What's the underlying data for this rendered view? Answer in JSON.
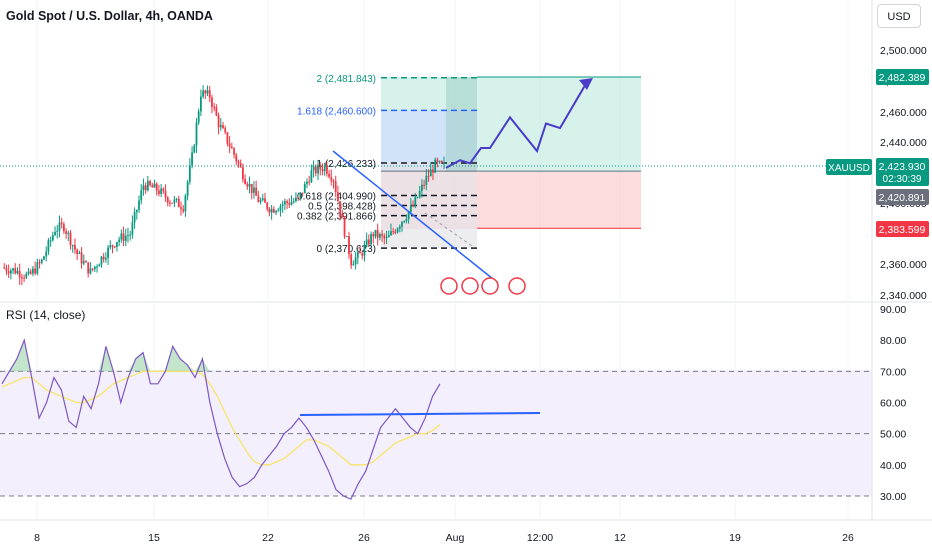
{
  "header": {
    "title": "Gold Spot / U.S. Dollar, 4h, OANDA",
    "currency": "USD"
  },
  "rsi_panel": {
    "title": "RSI (14, close)"
  },
  "colors": {
    "up": "#089981",
    "down": "#f23645",
    "rsi_line": "#7e57c2",
    "rsi_ma": "#f7e56a",
    "trendline": "#2962ff",
    "projection": "#4a3cc8",
    "target_zone": "#c8ede3",
    "stop_zone": "#fbd3d3",
    "fib_zone": "#cfe0fb"
  },
  "price_axis": {
    "ticks": [
      "2,500.000",
      "2,480.000",
      "2,460.000",
      "2,440.000",
      "2,400.000",
      "2,360.000",
      "2,340.000"
    ],
    "labels": {
      "symbol": "XAUUSD",
      "current_price": "2,423.930",
      "countdown": "02:30:39",
      "target_price": "2,482.389",
      "entry_price": "2,420.891",
      "stop_price": "2,383.599"
    }
  },
  "rsi_axis": {
    "ticks": [
      "90.00",
      "80.00",
      "70.00",
      "60.00",
      "50.00",
      "40.00",
      "30.00"
    ]
  },
  "time_axis": {
    "ticks": [
      "8",
      "15",
      "22",
      "26",
      "Aug",
      "12:00",
      "12",
      "19",
      "26"
    ]
  },
  "fib_labels": [
    "2 (2,481.843)",
    "1.618 (2,460.600)",
    "1 (2,426.233)",
    "0.618 (2,404.990)",
    "0.5 (2,398.428)",
    "0.382 (2,391.866)",
    "0 (2,370.623)"
  ],
  "chart_data": [
    {
      "type": "candlestick",
      "title": "Gold Spot / U.S. Dollar, 4h, OANDA",
      "ylim": [
        2340,
        2510
      ],
      "x_ticks": [
        "8",
        "15",
        "22",
        "26",
        "Aug",
        "12:00",
        "12",
        "19",
        "26"
      ],
      "close_path": [
        [
          0,
          2358
        ],
        [
          6,
          2356
        ],
        [
          12,
          2352
        ],
        [
          18,
          2362
        ],
        [
          24,
          2383
        ],
        [
          28,
          2385
        ],
        [
          34,
          2367
        ],
        [
          40,
          2355
        ],
        [
          46,
          2366
        ],
        [
          52,
          2376
        ],
        [
          58,
          2380
        ],
        [
          64,
          2412
        ],
        [
          70,
          2409
        ],
        [
          76,
          2402
        ],
        [
          82,
          2398
        ],
        [
          86,
          2430
        ],
        [
          90,
          2472
        ],
        [
          94,
          2470
        ],
        [
          98,
          2452
        ],
        [
          104,
          2435
        ],
        [
          110,
          2416
        ],
        [
          116,
          2402
        ],
        [
          122,
          2396
        ],
        [
          128,
          2400
        ],
        [
          134,
          2402
        ],
        [
          140,
          2420
        ],
        [
          146,
          2424
        ],
        [
          150,
          2416
        ],
        [
          154,
          2388
        ],
        [
          158,
          2362
        ],
        [
          162,
          2366
        ],
        [
          168,
          2380
        ],
        [
          174,
          2376
        ],
        [
          180,
          2387
        ],
        [
          186,
          2398
        ],
        [
          192,
          2416
        ],
        [
          196,
          2425
        ],
        [
          200,
          2423.93
        ]
      ],
      "last_price": 2423.93,
      "fibonacci": [
        {
          "level": "2",
          "price": 2481.843
        },
        {
          "level": "1.618",
          "price": 2460.6
        },
        {
          "level": "1",
          "price": 2426.233
        },
        {
          "level": "0.618",
          "price": 2404.99
        },
        {
          "level": "0.5",
          "price": 2398.428
        },
        {
          "level": "0.382",
          "price": 2391.866
        },
        {
          "level": "0",
          "price": 2370.623
        }
      ],
      "position": {
        "entry": 2420.891,
        "target": 2482.389,
        "stop": 2383.599
      },
      "projection_path": [
        2423,
        2428,
        2426,
        2436,
        2436,
        2456,
        2434,
        2452,
        2449,
        2478
      ]
    },
    {
      "type": "line",
      "title": "RSI (14, close)",
      "ylim": [
        25,
        92
      ],
      "bands": [
        70,
        50,
        30
      ],
      "series": [
        {
          "values": [
            66,
            70,
            74,
            80,
            68,
            55,
            60,
            68,
            64,
            54,
            52,
            62,
            58,
            66,
            78,
            70,
            60,
            68,
            74,
            76,
            66,
            66,
            70,
            78,
            74,
            72,
            68,
            74,
            60,
            50,
            42,
            36,
            33,
            34,
            36,
            40,
            43,
            46,
            50,
            52,
            55,
            52,
            48,
            43,
            38,
            32,
            30,
            29,
            34,
            38,
            45,
            52,
            55,
            58,
            55,
            52,
            50,
            55,
            62,
            66
          ]
        },
        {
          "values": [
            65,
            66,
            67,
            68,
            68,
            66,
            64,
            63,
            62,
            61,
            60,
            60,
            61,
            62,
            64,
            66,
            67,
            68,
            69,
            70,
            70,
            70,
            70,
            70,
            70,
            70,
            70,
            69,
            66,
            62,
            57,
            52,
            48,
            44,
            41,
            40,
            40,
            41,
            42,
            44,
            46,
            48,
            48,
            47,
            46,
            44,
            42,
            40,
            40,
            40,
            41,
            43,
            45,
            47,
            48,
            49,
            50,
            50,
            51,
            53
          ]
        }
      ],
      "trendline": [
        55.4,
        55.8
      ]
    }
  ]
}
